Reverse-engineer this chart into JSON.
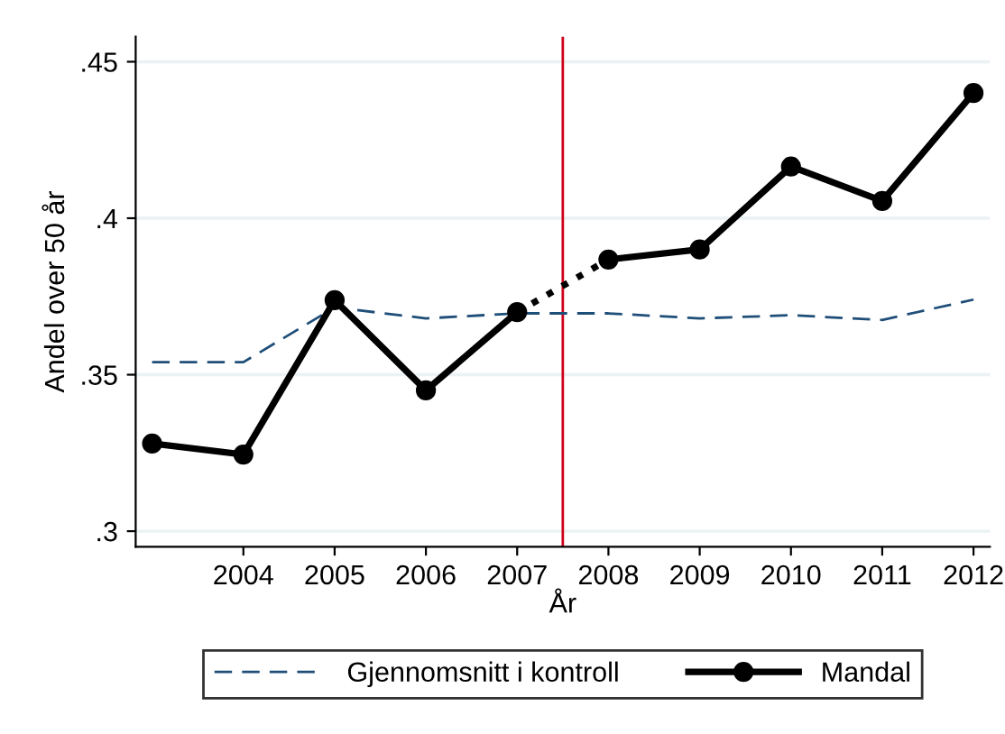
{
  "chart_data": {
    "type": "line",
    "xlabel": "År",
    "ylabel": "Andel over 50 år",
    "xlim": [
      2002.82,
      2012.18
    ],
    "xticks": [
      2004,
      2005,
      2006,
      2007,
      2008,
      2009,
      2010,
      2011,
      2012
    ],
    "ylim": [
      0.295,
      0.458
    ],
    "yticks": [
      {
        "value": 0.3,
        "label": ".3"
      },
      {
        "value": 0.35,
        "label": ".35"
      },
      {
        "value": 0.4,
        "label": ".4"
      },
      {
        "value": 0.45,
        "label": ".45"
      }
    ],
    "grid": "y",
    "legend": "bottom",
    "series": [
      {
        "name": "Gjennomsnitt i kontroll",
        "color": "#1f4e79",
        "line_style": "dashed",
        "marker": "none",
        "x": [
          2003,
          2004,
          2005,
          2006,
          2007,
          2008,
          2009,
          2010,
          2011,
          2012
        ],
        "values": [
          0.354,
          0.354,
          0.3715,
          0.368,
          0.3696,
          0.3696,
          0.368,
          0.369,
          0.3675,
          0.374
        ]
      },
      {
        "name": "Mandal",
        "color": "#000000",
        "line_style": "solid",
        "marker": "circle",
        "x": [
          2003,
          2004,
          2005,
          2006,
          2007
        ],
        "values": [
          0.328,
          0.3245,
          0.3738,
          0.345,
          0.37
        ]
      },
      {
        "color": "#000000",
        "line_style": "solid",
        "marker": "circle",
        "x": [
          2008,
          2009,
          2010,
          2011,
          2012
        ],
        "values": [
          0.3868,
          0.39,
          0.4165,
          0.4055,
          0.44
        ]
      },
      {
        "color": "#000000",
        "line_style": "dotted",
        "marker": "none",
        "x": [
          2007,
          2008
        ],
        "values": [
          0.37,
          0.3868
        ]
      }
    ],
    "ref_lines": [
      {
        "axis": "x",
        "value": 2007.5,
        "color": "#d0021b"
      }
    ]
  }
}
